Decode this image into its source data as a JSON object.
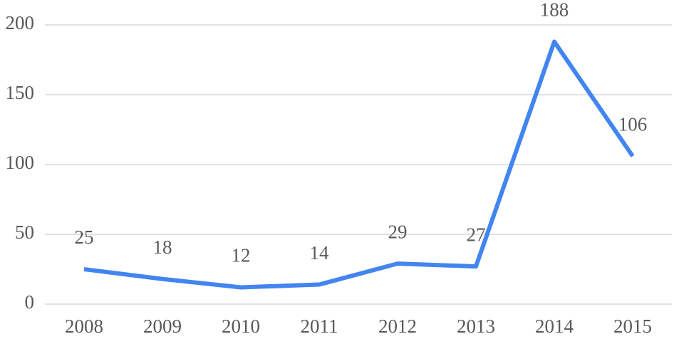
{
  "chart_data": {
    "type": "line",
    "categories": [
      "2008",
      "2009",
      "2010",
      "2011",
      "2012",
      "2013",
      "2014",
      "2015"
    ],
    "series": [
      {
        "color": "#4285f0",
        "values": [
          25,
          18,
          12,
          14,
          29,
          27,
          188,
          106
        ]
      }
    ],
    "ylim": [
      0,
      200
    ],
    "yticks": [
      0,
      50,
      100,
      150,
      200
    ],
    "grid": true,
    "data_labels": true
  }
}
